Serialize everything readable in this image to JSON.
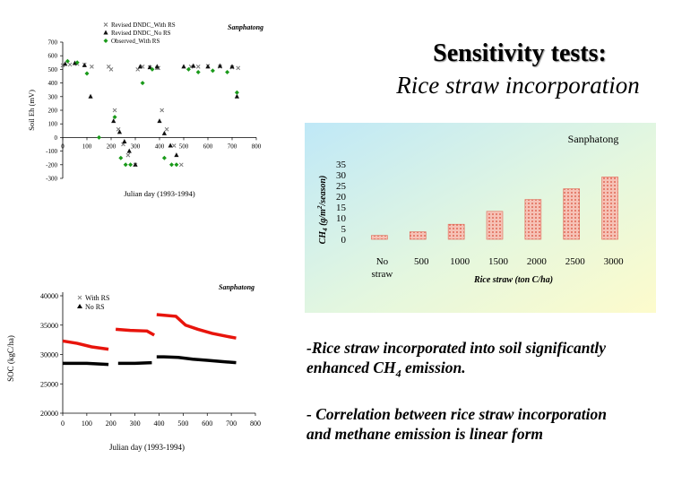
{
  "slide": {
    "title": "Sensitivity tests:",
    "subtitle": "Rice straw incorporation",
    "bullet1_line1": "-Rice straw incorporated into soil significantly",
    "bullet1_line2_pre": "enhanced CH",
    "bullet1_line2_sub": "4",
    "bullet1_line2_post": " emission.",
    "bullet2_line1": "- Correlation between rice straw incorporation",
    "bullet2_line2": "and methane emission is linear form"
  },
  "chart_data": [
    {
      "type": "scatter",
      "site_label": "Sanphatong",
      "xlabel": "Julian day (1993-1994)",
      "ylabel": "Soil Eh (mV)",
      "xlim": [
        0,
        800
      ],
      "ylim": [
        -300,
        700
      ],
      "x_ticks": [
        "0",
        "100",
        "200",
        "300",
        "400",
        "500",
        "600",
        "700",
        "800"
      ],
      "y_ticks": [
        "700",
        "600",
        "500",
        "400",
        "300",
        "200",
        "100",
        "0",
        "-100",
        "-200",
        "-300"
      ],
      "grid": false,
      "legend_position": "top-left",
      "series": [
        {
          "name": "Revised DNDC_With RS",
          "marker": "x",
          "color": "#7a7a7a",
          "x": [
            0,
            30,
            60,
            90,
            120,
            190,
            200,
            215,
            230,
            250,
            270,
            300,
            310,
            330,
            360,
            390,
            395,
            410,
            430,
            460,
            490,
            530,
            560,
            600,
            650,
            700,
            725
          ],
          "y": [
            530,
            535,
            540,
            535,
            520,
            520,
            500,
            200,
            60,
            -50,
            -130,
            -200,
            500,
            520,
            515,
            510,
            510,
            200,
            60,
            -60,
            -200,
            520,
            520,
            525,
            520,
            515,
            510
          ]
        },
        {
          "name": "Revised DNDC_No RS",
          "marker": "square",
          "color": "#111111",
          "x": [
            10,
            50,
            90,
            115,
            210,
            235,
            255,
            275,
            300,
            320,
            360,
            390,
            400,
            420,
            445,
            470,
            500,
            540,
            600,
            650,
            700,
            720
          ],
          "y": [
            540,
            545,
            530,
            300,
            120,
            40,
            -30,
            -100,
            -200,
            520,
            515,
            520,
            120,
            30,
            -60,
            -130,
            520,
            525,
            520,
            525,
            520,
            300
          ]
        },
        {
          "name": "Observed_With RS",
          "marker": "diamond",
          "color": "#1a9a1a",
          "x": [
            20,
            60,
            100,
            150,
            215,
            240,
            260,
            280,
            330,
            370,
            420,
            450,
            470,
            520,
            560,
            620,
            680,
            720
          ],
          "y": [
            560,
            550,
            470,
            0,
            150,
            -150,
            -200,
            -200,
            400,
            500,
            -150,
            -200,
            -200,
            500,
            480,
            490,
            480,
            330
          ]
        }
      ]
    },
    {
      "type": "bar",
      "site_label": "Sanphatong",
      "xlabel": "Rice straw  (ton C/ha)",
      "ylabel": "CH4 (g/m2/season)",
      "categories": [
        "No straw",
        "500",
        "1000",
        "1500",
        "2000",
        "2500",
        "3000"
      ],
      "values": [
        1.8,
        3.5,
        7.0,
        13.0,
        18.5,
        23.5,
        29.0
      ],
      "ylim": [
        0,
        35
      ],
      "y_ticks": [
        "35",
        "30",
        "25",
        "20",
        "15",
        "10",
        "5",
        "0"
      ],
      "grid": false
    },
    {
      "type": "line",
      "site_label": "Sanphatong",
      "xlabel": "Julian day (1993-1994)",
      "ylabel": "SOC (kgC/ha)",
      "xlim": [
        0,
        800
      ],
      "ylim": [
        20000,
        40000
      ],
      "x_ticks": [
        "0",
        "100",
        "200",
        "300",
        "400",
        "500",
        "600",
        "700",
        "800"
      ],
      "y_ticks": [
        "40000",
        "35000",
        "30000",
        "25000",
        "20000"
      ],
      "legend_position": "top-left",
      "series": [
        {
          "name": "With RS",
          "color": "#e8140c",
          "x": [
            0,
            60,
            120,
            190,
            220,
            280,
            350,
            380,
            390,
            470,
            510,
            560,
            620,
            680,
            720
          ],
          "y": [
            32300,
            31900,
            31300,
            30900,
            34300,
            34100,
            34000,
            33300,
            36800,
            36500,
            35000,
            34300,
            33600,
            33100,
            32800
          ]
        },
        {
          "name": "No RS",
          "color": "#000000",
          "x": [
            0,
            100,
            190,
            230,
            300,
            370,
            390,
            420,
            480,
            540,
            600,
            660,
            720
          ],
          "y": [
            28500,
            28500,
            28300,
            28500,
            28500,
            28600,
            29600,
            29600,
            29500,
            29200,
            29000,
            28800,
            28600
          ]
        }
      ]
    }
  ]
}
